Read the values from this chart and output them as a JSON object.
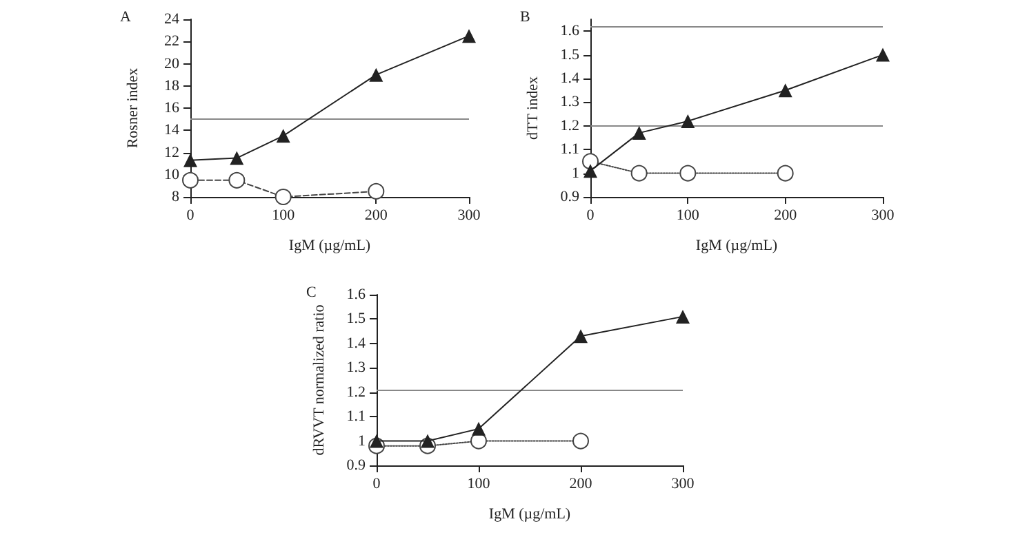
{
  "chart_data": [
    {
      "type": "line",
      "title": "A",
      "xlabel": "IgM (µg/mL)",
      "ylabel": "Rosner index",
      "x": [
        0,
        50,
        100,
        200,
        300
      ],
      "xlim": [
        0,
        300
      ],
      "xticks": [
        0,
        100,
        200,
        300
      ],
      "ylim": [
        8,
        24
      ],
      "yticks": [
        8,
        10,
        12,
        14,
        16,
        18,
        20,
        22,
        24
      ],
      "grid": false,
      "series": [
        {
          "color": "#222222",
          "marker": "triangle",
          "line_style": "solid",
          "values": [
            11.3,
            11.5,
            13.5,
            19,
            22.5
          ]
        },
        {
          "color": "#444444",
          "marker": "circle",
          "line_style": "dashed",
          "x": [
            0,
            50,
            100,
            200
          ],
          "values": [
            9.5,
            9.5,
            8,
            8.5
          ]
        }
      ],
      "ref_lines": [
        {
          "axis": "y",
          "value": 15,
          "color": "#888888"
        }
      ]
    },
    {
      "type": "line",
      "title": "B",
      "xlabel": "IgM (µg/mL)",
      "ylabel": "dTT index",
      "x": [
        0,
        50,
        100,
        200,
        300
      ],
      "xlim": [
        0,
        300
      ],
      "xticks": [
        0,
        100,
        200,
        300
      ],
      "ylim": [
        0.9,
        1.65
      ],
      "yticks": [
        0.9,
        1,
        1.1,
        1.2,
        1.3,
        1.4,
        1.5,
        1.6
      ],
      "grid": false,
      "series": [
        {
          "color": "#222222",
          "marker": "triangle",
          "line_style": "solid",
          "values": [
            1.01,
            1.17,
            1.22,
            1.35,
            1.5
          ]
        },
        {
          "color": "#444444",
          "marker": "circle",
          "line_style": "dotted",
          "x": [
            0,
            50,
            100,
            200
          ],
          "values": [
            1.05,
            1.0,
            1.0,
            1.0
          ]
        }
      ],
      "ref_lines": [
        {
          "axis": "y",
          "value": 1.2,
          "color": "#888888"
        },
        {
          "axis": "y",
          "value": 1.62,
          "color": "#888888"
        }
      ]
    },
    {
      "type": "line",
      "title": "C",
      "xlabel": "IgM (µg/mL)",
      "ylabel": "dRVVT normalized ratio",
      "x": [
        0,
        50,
        100,
        200,
        300
      ],
      "xlim": [
        0,
        300
      ],
      "xticks": [
        0,
        100,
        200,
        300
      ],
      "ylim": [
        0.9,
        1.6
      ],
      "yticks": [
        0.9,
        1,
        1.1,
        1.2,
        1.3,
        1.4,
        1.5,
        1.6
      ],
      "grid": false,
      "series": [
        {
          "color": "#222222",
          "marker": "triangle",
          "line_style": "solid",
          "values": [
            1.0,
            1.0,
            1.05,
            1.43,
            1.51
          ]
        },
        {
          "color": "#444444",
          "marker": "circle",
          "line_style": "dotted",
          "x": [
            0,
            50,
            100,
            200
          ],
          "values": [
            0.98,
            0.98,
            1.0,
            1.0
          ]
        }
      ],
      "ref_lines": [
        {
          "axis": "y",
          "value": 1.21,
          "color": "#888888"
        }
      ]
    }
  ]
}
